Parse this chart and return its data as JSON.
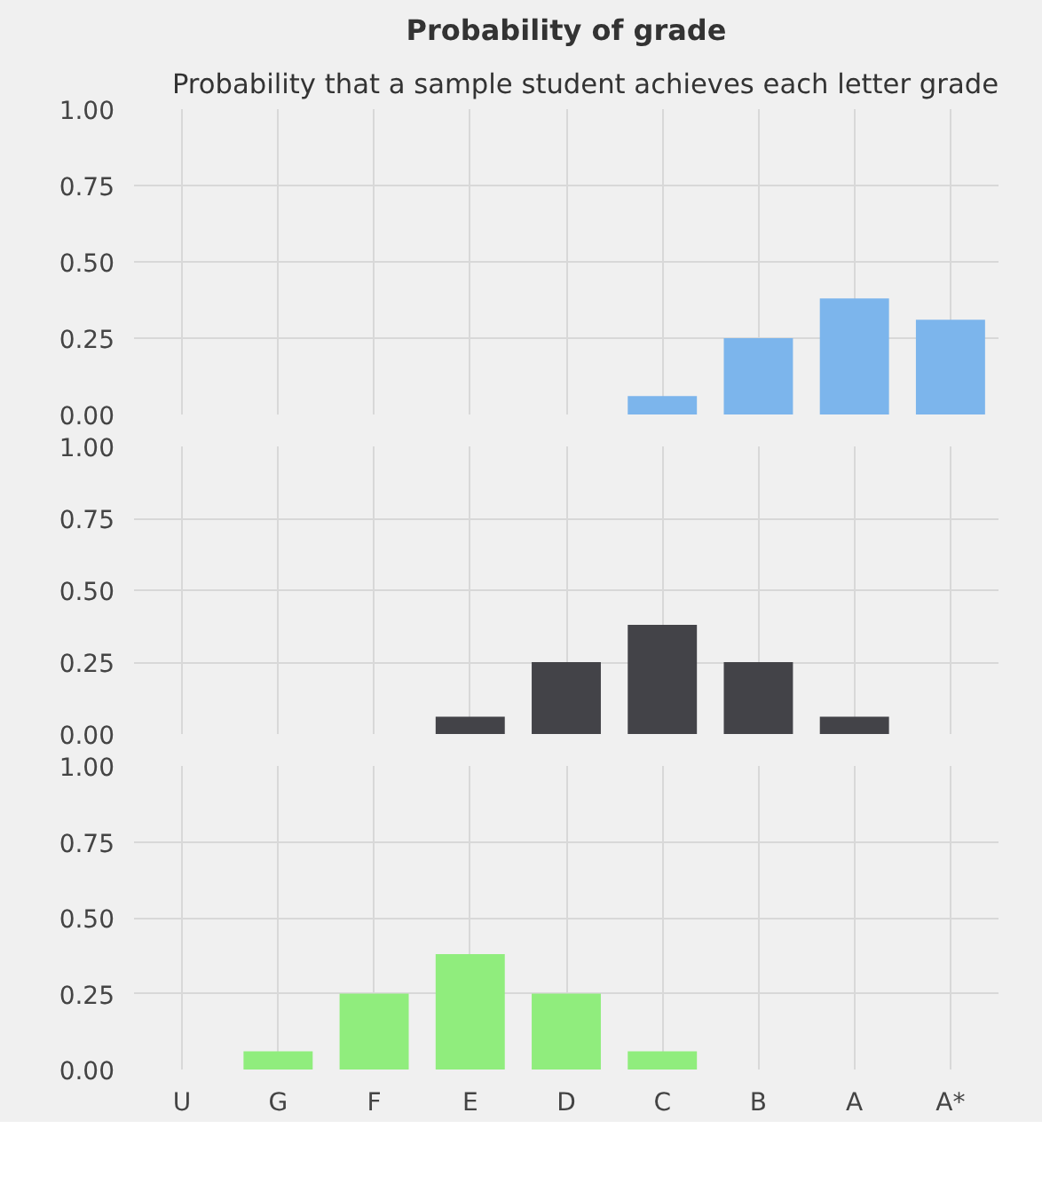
{
  "chart_data": [
    {
      "type": "bar",
      "title": "Probability of grade",
      "subtitle": "Probability that a sample student achieves each letter grade",
      "categories": [
        null,
        null,
        null,
        null,
        null,
        null,
        null,
        null,
        null
      ],
      "series": [
        {
          "color": "#7cb5ec",
          "values": [
            0,
            0,
            0,
            0,
            0,
            0.06,
            0.25,
            0.38,
            0.31
          ]
        }
      ],
      "ylim": [
        0,
        1
      ],
      "yticks": [
        {
          "value": 0,
          "label": "0.00"
        },
        {
          "value": 0.25,
          "label": "0.25"
        },
        {
          "value": 0.5,
          "label": "0.50"
        },
        {
          "value": 0.75,
          "label": "0.75"
        },
        {
          "value": 1,
          "label": "1.00"
        }
      ],
      "grid": true,
      "tick_labels": "y"
    },
    {
      "type": "bar",
      "categories": [
        null,
        null,
        null,
        null,
        null,
        null,
        null,
        null,
        null
      ],
      "series": [
        {
          "color": "#434348",
          "values": [
            0,
            0,
            0,
            0.06,
            0.25,
            0.38,
            0.25,
            0.06,
            0
          ]
        }
      ],
      "ylim": [
        0,
        1
      ],
      "yticks": [
        {
          "value": 0,
          "label": "0.00"
        },
        {
          "value": 0.25,
          "label": "0.25"
        },
        {
          "value": 0.5,
          "label": "0.50"
        },
        {
          "value": 0.75,
          "label": "0.75"
        },
        {
          "value": 1,
          "label": "1.00"
        }
      ],
      "grid": true,
      "tick_labels": "y"
    },
    {
      "type": "bar",
      "categories": [
        "U",
        "G",
        "F",
        "E",
        "D",
        "C",
        "B",
        "A",
        "A*"
      ],
      "series": [
        {
          "color": "#90ed7d",
          "values": [
            0,
            0.06,
            0.25,
            0.38,
            0.25,
            0.06,
            0,
            0,
            0
          ]
        }
      ],
      "ylim": [
        0,
        1
      ],
      "yticks": [
        {
          "value": 0,
          "label": "0.00"
        },
        {
          "value": 0.25,
          "label": "0.25"
        },
        {
          "value": 0.5,
          "label": "0.50"
        },
        {
          "value": 0.75,
          "label": "0.75"
        },
        {
          "value": 1,
          "label": "1.00"
        }
      ],
      "grid": true
    }
  ]
}
